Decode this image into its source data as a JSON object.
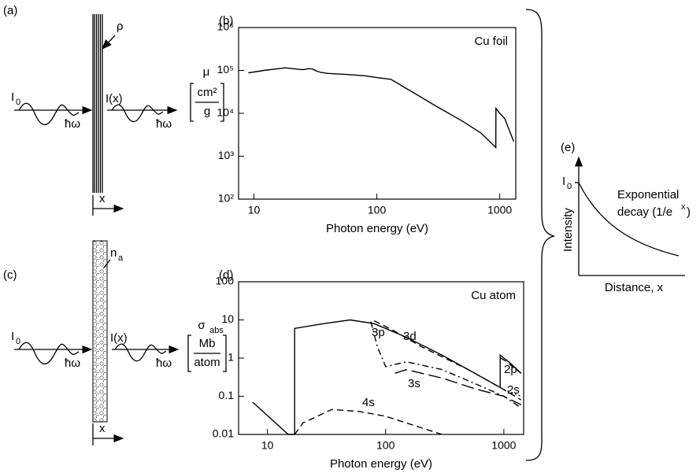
{
  "chart_data": [
    {
      "type": "line",
      "label": "(b)",
      "annotation": "Cu foil",
      "xlabel": "Photon energy (eV)",
      "ylabel": {
        "symbol": "μ",
        "numerator": "cm²",
        "denominator": "g"
      },
      "log_x": true,
      "log_y": true,
      "xlim": [
        7.5,
        1350
      ],
      "ylim": [
        100,
        1000000
      ],
      "xticks": [
        10,
        100,
        1000
      ],
      "yticks": [
        {
          "value": 100,
          "label": "10²"
        },
        {
          "value": 1000,
          "label": "10³"
        },
        {
          "value": 10000,
          "label": "10⁴"
        },
        {
          "value": 100000,
          "label": "10⁵"
        },
        {
          "value": 1000000,
          "label": "10⁶"
        }
      ],
      "series": [
        {
          "color": "#000000",
          "dash": "solid",
          "x": [
            9,
            10,
            12,
            15,
            18,
            22,
            25,
            28,
            30,
            32,
            35,
            40,
            60,
            80,
            100,
            130,
            200,
            300,
            500,
            700,
            930,
            931,
            1000,
            1100,
            1300
          ],
          "values": [
            88000,
            92000,
            100000,
            108000,
            115000,
            108000,
            104000,
            110000,
            108000,
            98000,
            90000,
            85000,
            80000,
            75000,
            68000,
            62000,
            30000,
            15000,
            6500,
            3500,
            1600,
            13000,
            10000,
            7500,
            2200
          ]
        }
      ]
    },
    {
      "type": "line",
      "label": "(d)",
      "annotation": "Cu atom",
      "xlabel": "Photon energy (eV)",
      "ylabel": {
        "symbol": "σ",
        "subscript": "abs",
        "numerator": "Mb",
        "denominator": "atom"
      },
      "log_x": true,
      "log_y": true,
      "xlim": [
        5.7,
        1470
      ],
      "ylim": [
        0.01,
        100
      ],
      "xticks": [
        10,
        100,
        1000
      ],
      "yticks": [
        0.01,
        0.1,
        1,
        10,
        100
      ],
      "series": [
        {
          "color": "#000000",
          "dash": "solid",
          "x": [
            7.5,
            15,
            17,
            17,
            30,
            50,
            80,
            150,
            300,
            500,
            930,
            931,
            1000,
            1100,
            1400
          ],
          "values": [
            0.07,
            0.01,
            0.01,
            6,
            8,
            10,
            8,
            3.5,
            1.2,
            0.5,
            0.17,
            1.2,
            1.0,
            0.8,
            0.4
          ]
        },
        {
          "name": "3p",
          "color": "#000000",
          "dash": "dash-dot",
          "x": [
            75,
            85,
            100,
            150,
            300,
            600,
            1000,
            1400
          ],
          "values": [
            9,
            2,
            0.6,
            0.8,
            0.5,
            0.2,
            0.1,
            0.05
          ]
        },
        {
          "name": "3d",
          "color": "#000000",
          "dash": "dashed",
          "x": [
            80,
            120,
            200,
            500,
            1000,
            1400
          ],
          "values": [
            9.5,
            5,
            2,
            0.5,
            0.15,
            0.08
          ]
        },
        {
          "name": "3s",
          "color": "#000000",
          "dash": "long-dash",
          "x": [
            120,
            150,
            300,
            600,
            1000,
            1400
          ],
          "values": [
            0.4,
            0.5,
            0.3,
            0.15,
            0.1,
            0.06
          ]
        },
        {
          "name": "4s",
          "color": "#000000",
          "dash": "dashed",
          "x": [
            17,
            20,
            35,
            60,
            100,
            200,
            300
          ],
          "values": [
            0.01,
            0.02,
            0.045,
            0.04,
            0.03,
            0.015,
            0.01
          ]
        },
        {
          "name": "2p",
          "color": "#000000",
          "dash": "dashed",
          "x": [
            940,
            1000,
            1400
          ],
          "values": [
            1.0,
            0.9,
            0.4
          ]
        },
        {
          "name": "2s",
          "color": "#000000",
          "dash": "dotted",
          "x": [
            1000,
            1400
          ],
          "values": [
            0.15,
            0.1
          ]
        }
      ]
    }
  ],
  "diagrams": {
    "a": {
      "label": "(a)",
      "density": "ρ",
      "incident": "I",
      "incident_sub": "0",
      "photon_in": "ħω",
      "transmitted": "I(x)",
      "photon_out": "ħω",
      "axis": "x"
    },
    "c": {
      "label": "(c)",
      "density": "n",
      "density_sub": "a",
      "incident": "I",
      "incident_sub": "0",
      "photon_in": "ħω",
      "transmitted": "I(x)",
      "photon_out": "ħω",
      "axis": "x"
    },
    "e": {
      "label": "(e)",
      "i0": "I",
      "i0_sub": "0",
      "ylabel": "Intensity",
      "xlabel": "Distance, x",
      "note_1": "Exponential",
      "note_2": "decay (1/e",
      "note_sup": "x",
      "note_end": ")"
    }
  }
}
